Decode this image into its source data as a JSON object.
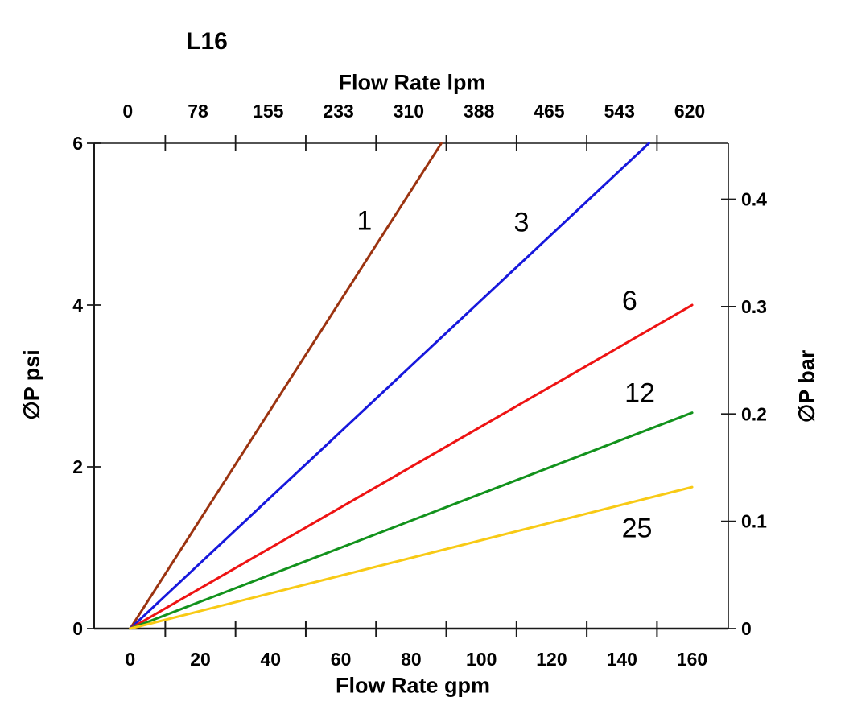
{
  "page": {
    "background_color": "#ffffff",
    "text_color": "#000000"
  },
  "chart_data": {
    "type": "line",
    "title": "L16",
    "grid": false,
    "legend": "inline-line-labels",
    "xlim_gpm": [
      -10.25,
      170.3
    ],
    "ylim_psi": [
      0,
      6
    ],
    "axes": {
      "top": {
        "label": "Flow Rate lpm",
        "tick_labels": [
          "0",
          "78",
          "155",
          "233",
          "310",
          "388",
          "465",
          "543",
          "620"
        ],
        "tick_label_positions_gpm": [
          0,
          20,
          40,
          60,
          80,
          100,
          120,
          140,
          160
        ],
        "minor_ticks_gpm": [
          10,
          30,
          50,
          70,
          90,
          110,
          130,
          150
        ]
      },
      "bottom": {
        "label": "Flow Rate gpm",
        "tick_labels": [
          "0",
          "20",
          "40",
          "60",
          "80",
          "100",
          "120",
          "140",
          "160"
        ],
        "tick_label_positions_gpm": [
          0,
          20,
          40,
          60,
          80,
          100,
          120,
          140,
          160
        ],
        "minor_ticks_gpm": [
          10,
          30,
          50,
          70,
          90,
          110,
          130,
          150
        ]
      },
      "left": {
        "label": "∅P psi",
        "tick_labels": [
          "0",
          "2",
          "4",
          "6"
        ],
        "tick_positions_psi": [
          0,
          2,
          4,
          6
        ]
      },
      "right": {
        "label": "∅P bar",
        "tick_labels": [
          "0",
          "0.1",
          "0.2",
          "0.3",
          "0.4"
        ],
        "tick_positions_psi": [
          0,
          1.327,
          2.654,
          3.981,
          5.308
        ]
      }
    },
    "series": [
      {
        "label": "1",
        "color": "#9b3310",
        "points_gpm_psi": [
          [
            0,
            0
          ],
          [
            88.6,
            6.0
          ]
        ],
        "label_at_gpm_psi": [
          66.7,
          5.05
        ]
      },
      {
        "label": "3",
        "color": "#1718dc",
        "points_gpm_psi": [
          [
            0,
            0
          ],
          [
            147.7,
            6.0
          ]
        ],
        "label_at_gpm_psi": [
          111.4,
          5.03
        ]
      },
      {
        "label": "6",
        "color": "#ee1313",
        "points_gpm_psi": [
          [
            0,
            0
          ],
          [
            160.0,
            4.0
          ]
        ],
        "label_at_gpm_psi": [
          142.2,
          4.06
        ]
      },
      {
        "label": "12",
        "color": "#12921c",
        "points_gpm_psi": [
          [
            0,
            0
          ],
          [
            160.0,
            2.67
          ]
        ],
        "label_at_gpm_psi": [
          145.1,
          2.92
        ]
      },
      {
        "label": "25",
        "color": "#f8ca15",
        "points_gpm_psi": [
          [
            0,
            0
          ],
          [
            160.0,
            1.75
          ]
        ],
        "label_at_gpm_psi": [
          144.3,
          1.25
        ]
      }
    ]
  }
}
